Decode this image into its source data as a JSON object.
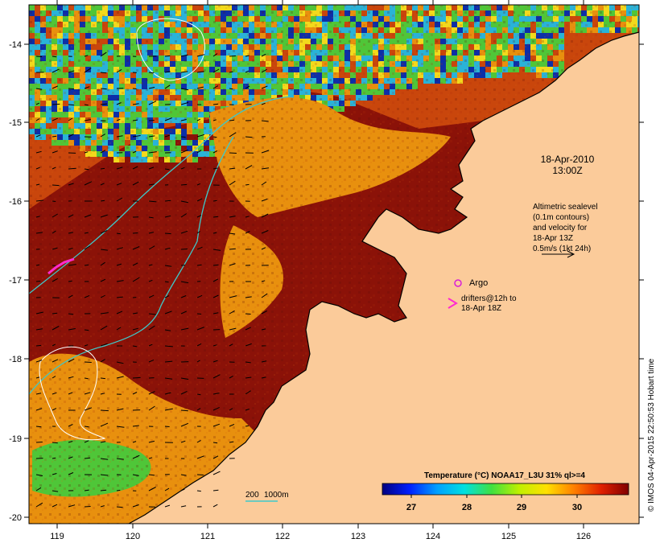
{
  "map": {
    "lon_ticks": [
      "119",
      "120",
      "121",
      "122",
      "123",
      "124",
      "125",
      "126"
    ],
    "lat_ticks": [
      "-14",
      "-15",
      "-16",
      "-17",
      "-18",
      "-19",
      "-20"
    ],
    "colors": {
      "land": "#fbcb9a",
      "hot": "#8b1208",
      "warm": "#c9460c",
      "orange": "#e8900e",
      "yellow": "#f2d91c",
      "green": "#4fc638",
      "cyan": "#29b3d8",
      "blue": "#0c2fa8",
      "isobath": "#3ec9c9",
      "argo": "#d81ed8",
      "drifter": "#ff2ad0"
    }
  },
  "annotations": {
    "date_line1": "18-Apr-2010",
    "date_line2": "13:00Z",
    "altimetry_lines": [
      "Altimetric sealevel",
      "(0.1m contours)",
      "and velocity for",
      "18-Apr 13Z",
      "0.5m/s (1kt 24h)"
    ],
    "argo_label": "Argo",
    "drifter_lines": [
      "drifters@12h to",
      "18-Apr 18Z"
    ],
    "argo_symbol": "o",
    "drifter_symbol": ">"
  },
  "isobath_legend": {
    "label_200": "200",
    "label_1000": "1000m"
  },
  "colorbar": {
    "title": "Temperature (°C) NOAA17_L3U 31% ql>=4",
    "ticks": [
      "27",
      "28",
      "29",
      "30"
    ],
    "stops": [
      "#000080",
      "#0020ff",
      "#00a0ff",
      "#00e0e0",
      "#40e040",
      "#c0f000",
      "#ffe000",
      "#ff8000",
      "#e02000",
      "#800000"
    ]
  },
  "credit": "© IMOS 04-Apr-2015 22:50:53 Hobart time"
}
